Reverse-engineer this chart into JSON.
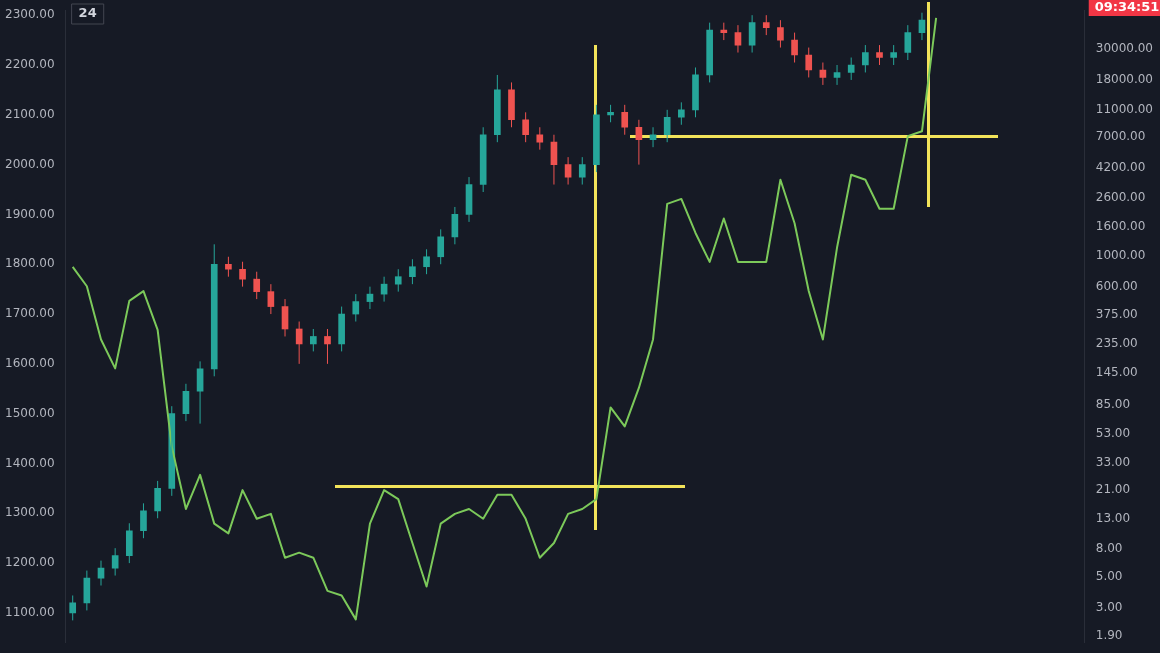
{
  "chart_data": {
    "type": "candlestick",
    "annotations": [
      "24",
      "09:34:51"
    ],
    "categories": [
      null,
      null,
      null,
      null,
      null,
      null,
      null,
      null,
      null,
      null,
      null,
      null,
      null,
      null,
      null,
      null,
      null,
      null,
      null,
      null,
      null,
      null,
      null,
      null,
      null,
      null,
      null,
      null,
      null,
      null,
      null,
      null,
      null,
      null,
      null,
      null,
      null,
      null,
      null,
      null,
      null,
      null,
      null,
      null,
      null,
      null,
      null,
      null,
      null,
      null,
      null,
      null,
      null,
      null,
      null,
      null,
      null,
      null,
      null,
      null,
      null,
      null,
      null,
      null,
      null,
      null,
      null,
      null,
      null,
      null,
      null,
      null
    ],
    "ylim": [
      1040,
      2310
    ],
    "yticks": [
      {
        "value": 1100,
        "label": "1100.00"
      },
      {
        "value": 1200,
        "label": "1200.00"
      },
      {
        "value": 1300,
        "label": "1300.00"
      },
      {
        "value": 1400,
        "label": "1400.00"
      },
      {
        "value": 1500,
        "label": "1500.00"
      },
      {
        "value": 1600,
        "label": "1600.00"
      },
      {
        "value": 1700,
        "label": "1700.00"
      },
      {
        "value": 1800,
        "label": "1800.00"
      },
      {
        "value": 1900,
        "label": "1900.00"
      },
      {
        "value": 2000,
        "label": "2000.00"
      },
      {
        "value": 2100,
        "label": "2100.00"
      },
      {
        "value": 2200,
        "label": "2200.00"
      },
      {
        "value": 2300,
        "label": "2300.00"
      }
    ],
    "y2lim": [
      1.7,
      56800
    ],
    "y2ticks": [
      {
        "value": 1.9,
        "label": "1.90"
      },
      {
        "value": 3,
        "label": "3.00"
      },
      {
        "value": 5,
        "label": "5.00"
      },
      {
        "value": 8,
        "label": "8.00"
      },
      {
        "value": 13,
        "label": "13.00"
      },
      {
        "value": 21,
        "label": "21.00"
      },
      {
        "value": 33,
        "label": "33.00"
      },
      {
        "value": 53,
        "label": "53.00"
      },
      {
        "value": 85,
        "label": "85.00"
      },
      {
        "value": 145,
        "label": "145.00"
      },
      {
        "value": 235,
        "label": "235.00"
      },
      {
        "value": 375,
        "label": "375.00"
      },
      {
        "value": 600,
        "label": "600.00"
      },
      {
        "value": 1000,
        "label": "1000.00"
      },
      {
        "value": 1600,
        "label": "1600.00"
      },
      {
        "value": 2600,
        "label": "2600.00"
      },
      {
        "value": 4200,
        "label": "4200.00"
      },
      {
        "value": 7000,
        "label": "7000.00"
      },
      {
        "value": 11000,
        "label": "11000.00"
      },
      {
        "value": 18000,
        "label": "18000.00"
      },
      {
        "value": 30000,
        "label": "30000.00"
      }
    ],
    "log": "y2",
    "grid": false,
    "legend": false,
    "tick_labels": "y",
    "series": [
      {
        "ohlc": [
          [
            1100,
            1135,
            1085,
            1120
          ],
          [
            1120,
            1185,
            1105,
            1170
          ],
          [
            1170,
            1205,
            1155,
            1190
          ],
          [
            1190,
            1230,
            1175,
            1215
          ],
          [
            1215,
            1280,
            1200,
            1265
          ],
          [
            1265,
            1320,
            1250,
            1305
          ],
          [
            1305,
            1365,
            1290,
            1350
          ],
          [
            1350,
            1515,
            1335,
            1500
          ],
          [
            1500,
            1560,
            1485,
            1545
          ],
          [
            1545,
            1605,
            1480,
            1590
          ],
          [
            1590,
            1840,
            1575,
            1800
          ],
          [
            1800,
            1815,
            1775,
            1790
          ],
          [
            1790,
            1805,
            1755,
            1770
          ],
          [
            1770,
            1785,
            1730,
            1745
          ],
          [
            1745,
            1760,
            1700,
            1715
          ],
          [
            1715,
            1730,
            1655,
            1670
          ],
          [
            1670,
            1685,
            1600,
            1640
          ],
          [
            1640,
            1670,
            1625,
            1655
          ],
          [
            1655,
            1670,
            1600,
            1640
          ],
          [
            1640,
            1715,
            1625,
            1700
          ],
          [
            1700,
            1740,
            1685,
            1725
          ],
          [
            1725,
            1755,
            1710,
            1740
          ],
          [
            1740,
            1775,
            1725,
            1760
          ],
          [
            1760,
            1790,
            1745,
            1775
          ],
          [
            1775,
            1810,
            1760,
            1795
          ],
          [
            1795,
            1830,
            1780,
            1815
          ],
          [
            1815,
            1870,
            1800,
            1855
          ],
          [
            1855,
            1915,
            1840,
            1900
          ],
          [
            1900,
            1975,
            1885,
            1960
          ],
          [
            1960,
            2075,
            1945,
            2060
          ],
          [
            2060,
            2180,
            2045,
            2150
          ],
          [
            2150,
            2165,
            2075,
            2090
          ],
          [
            2090,
            2105,
            2045,
            2060
          ],
          [
            2060,
            2075,
            2030,
            2045
          ],
          [
            2045,
            2060,
            1960,
            2000
          ],
          [
            2000,
            2015,
            1960,
            1975
          ],
          [
            1975,
            2015,
            1960,
            2000
          ],
          [
            2000,
            2120,
            1985,
            2100
          ],
          [
            2100,
            2120,
            2085,
            2105
          ],
          [
            2105,
            2120,
            2060,
            2075
          ],
          [
            2075,
            2090,
            2000,
            2050
          ],
          [
            2050,
            2075,
            2035,
            2060
          ],
          [
            2060,
            2110,
            2045,
            2095
          ],
          [
            2095,
            2125,
            2080,
            2110
          ],
          [
            2110,
            2195,
            2095,
            2180
          ],
          [
            2180,
            2285,
            2165,
            2270
          ],
          [
            2270,
            2285,
            2250,
            2265
          ],
          [
            2265,
            2280,
            2225,
            2240
          ],
          [
            2240,
            2300,
            2225,
            2285
          ],
          [
            2285,
            2300,
            2260,
            2275
          ],
          [
            2275,
            2290,
            2235,
            2250
          ],
          [
            2250,
            2265,
            2205,
            2220
          ],
          [
            2220,
            2235,
            2175,
            2190
          ],
          [
            2190,
            2205,
            2160,
            2175
          ],
          [
            2175,
            2200,
            2160,
            2185
          ],
          [
            2185,
            2215,
            2170,
            2200
          ],
          [
            2200,
            2240,
            2185,
            2225
          ],
          [
            2225,
            2240,
            2200,
            2215
          ],
          [
            2215,
            2240,
            2200,
            2225
          ],
          [
            2225,
            2280,
            2210,
            2265
          ],
          [
            2265,
            2305,
            2250,
            2290
          ],
          null,
          null,
          null,
          null,
          null,
          null,
          null,
          null,
          null,
          null,
          null
        ],
        "colors": [
          "#26a69a",
          "#26a69a",
          "#26a69a",
          "#26a69a",
          "#26a69a",
          "#26a69a",
          "#26a69a",
          "#26a69a",
          "#26a69a",
          "#26a69a",
          "#26a69a",
          "#ef5350",
          "#ef5350",
          "#ef5350",
          "#ef5350",
          "#ef5350",
          "#ef5350",
          "#26a69a",
          "#ef5350",
          "#26a69a",
          "#26a69a",
          "#26a69a",
          "#26a69a",
          "#26a69a",
          "#26a69a",
          "#26a69a",
          "#26a69a",
          "#26a69a",
          "#26a69a",
          "#26a69a",
          "#26a69a",
          "#ef5350",
          "#ef5350",
          "#ef5350",
          "#ef5350",
          "#ef5350",
          "#26a69a",
          "#26a69a",
          "#26a69a",
          "#ef5350",
          "#ef5350",
          "#26a69a",
          "#26a69a",
          "#26a69a",
          "#26a69a",
          "#26a69a",
          "#ef5350",
          "#ef5350",
          "#26a69a",
          "#ef5350",
          "#ef5350",
          "#ef5350",
          "#ef5350",
          "#ef5350",
          "#26a69a",
          "#26a69a",
          "#26a69a",
          "#ef5350",
          "#26a69a",
          "#26a69a",
          "#26a69a",
          null,
          null,
          null,
          null,
          null,
          null,
          null,
          null,
          null,
          null,
          null
        ]
      },
      {
        "type": "line",
        "axis": "y2",
        "color": "#7cc95a",
        "values": [
          830,
          603,
          251,
          156,
          474,
          557,
          294,
          43,
          15.4,
          27,
          12.1,
          10.3,
          21,
          13.1,
          14.2,
          6.9,
          7.5,
          6.9,
          4.0,
          3.7,
          2.5,
          12.1,
          21,
          18.1,
          8.8,
          4.3,
          12.1,
          14.2,
          15.4,
          13.1,
          19.5,
          19.5,
          13.1,
          6.9,
          8.8,
          14.2,
          15.4,
          18.1,
          82,
          60,
          113,
          251,
          2340,
          2540,
          1450,
          900,
          1840,
          900,
          900,
          900,
          3480,
          1700,
          557,
          251,
          1140,
          3780,
          3480,
          2160,
          2160,
          7140,
          7730,
          50000,
          null,
          null,
          null,
          null,
          null,
          null,
          null,
          null,
          null,
          null
        ]
      }
    ]
  }
}
